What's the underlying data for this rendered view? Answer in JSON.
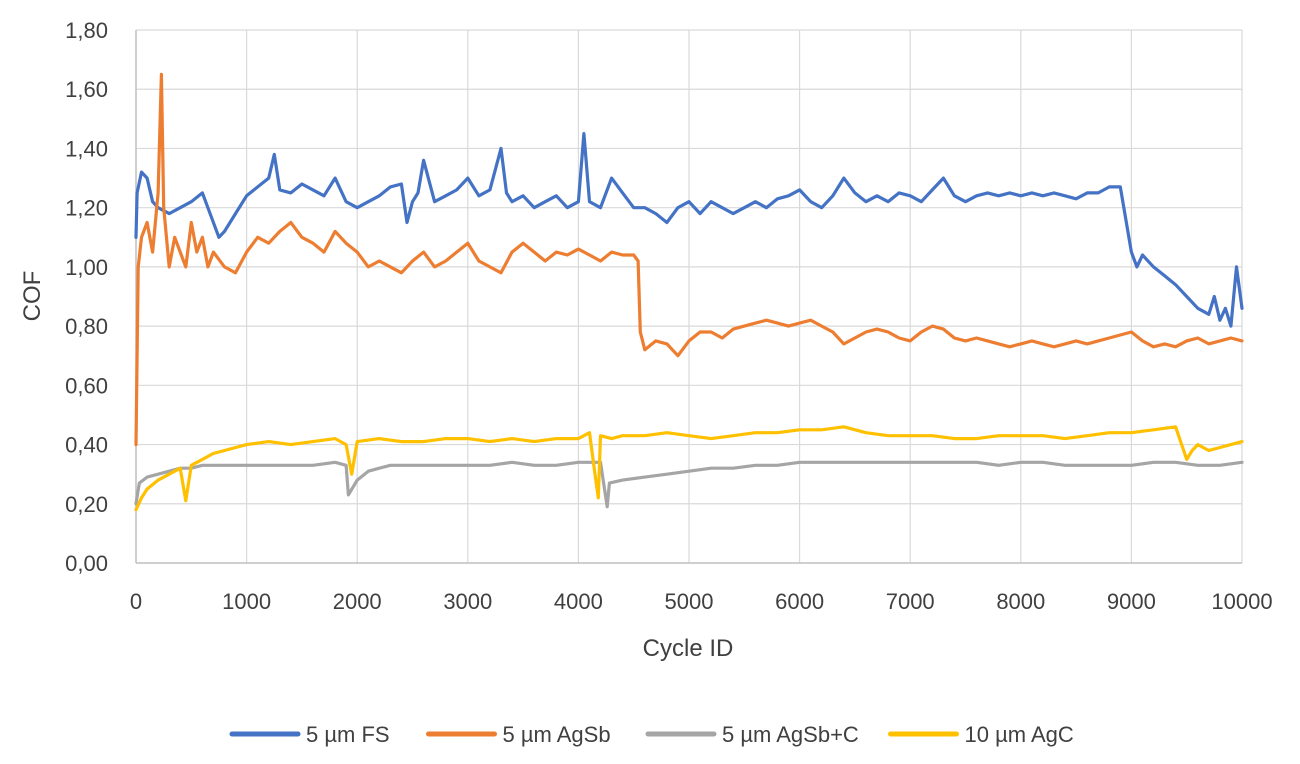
{
  "chart_data": {
    "type": "line",
    "title": "",
    "xlabel": "Cycle ID",
    "ylabel": "COF",
    "xlim": [
      0,
      10000
    ],
    "ylim": [
      0,
      1.8
    ],
    "grid": true,
    "legend_position": "bottom",
    "x_ticks": [
      0,
      1000,
      2000,
      3000,
      4000,
      5000,
      6000,
      7000,
      8000,
      9000,
      10000
    ],
    "x_tick_labels": [
      "0",
      "1000",
      "2000",
      "3000",
      "4000",
      "5000",
      "6000",
      "7000",
      "8000",
      "9000",
      "10000"
    ],
    "y_ticks": [
      0,
      0.2,
      0.4,
      0.6,
      0.8,
      1.0,
      1.2,
      1.4,
      1.6,
      1.8
    ],
    "y_tick_labels": [
      "0,00",
      "0,20",
      "0,40",
      "0,60",
      "0,80",
      "1,00",
      "1,20",
      "1,40",
      "1,60",
      "1,80"
    ],
    "series": [
      {
        "name": "5 µm FS",
        "color": "#4472C4",
        "x": [
          0,
          10,
          50,
          100,
          150,
          200,
          300,
          400,
          500,
          600,
          700,
          750,
          800,
          900,
          1000,
          1100,
          1200,
          1250,
          1300,
          1400,
          1500,
          1600,
          1700,
          1800,
          1900,
          2000,
          2100,
          2200,
          2300,
          2400,
          2450,
          2500,
          2550,
          2600,
          2700,
          2800,
          2900,
          3000,
          3100,
          3200,
          3300,
          3350,
          3400,
          3500,
          3600,
          3700,
          3800,
          3900,
          4000,
          4050,
          4100,
          4200,
          4300,
          4400,
          4500,
          4600,
          4700,
          4800,
          4900,
          5000,
          5100,
          5200,
          5300,
          5400,
          5500,
          5600,
          5700,
          5800,
          5900,
          6000,
          6100,
          6200,
          6300,
          6400,
          6500,
          6600,
          6700,
          6800,
          6900,
          7000,
          7100,
          7200,
          7300,
          7400,
          7500,
          7600,
          7700,
          7800,
          7900,
          8000,
          8100,
          8200,
          8300,
          8400,
          8500,
          8600,
          8700,
          8800,
          8900,
          9000,
          9050,
          9100,
          9200,
          9300,
          9400,
          9500,
          9600,
          9700,
          9750,
          9800,
          9850,
          9900,
          9950,
          10000
        ],
        "y": [
          1.1,
          1.25,
          1.32,
          1.3,
          1.22,
          1.2,
          1.18,
          1.2,
          1.22,
          1.25,
          1.15,
          1.1,
          1.12,
          1.18,
          1.24,
          1.27,
          1.3,
          1.38,
          1.26,
          1.25,
          1.28,
          1.26,
          1.24,
          1.3,
          1.22,
          1.2,
          1.22,
          1.24,
          1.27,
          1.28,
          1.15,
          1.22,
          1.25,
          1.36,
          1.22,
          1.24,
          1.26,
          1.3,
          1.24,
          1.26,
          1.4,
          1.25,
          1.22,
          1.24,
          1.2,
          1.22,
          1.24,
          1.2,
          1.22,
          1.45,
          1.22,
          1.2,
          1.3,
          1.25,
          1.2,
          1.2,
          1.18,
          1.15,
          1.2,
          1.22,
          1.18,
          1.22,
          1.2,
          1.18,
          1.2,
          1.22,
          1.2,
          1.23,
          1.24,
          1.26,
          1.22,
          1.2,
          1.24,
          1.3,
          1.25,
          1.22,
          1.24,
          1.22,
          1.25,
          1.24,
          1.22,
          1.26,
          1.3,
          1.24,
          1.22,
          1.24,
          1.25,
          1.24,
          1.25,
          1.24,
          1.25,
          1.24,
          1.25,
          1.24,
          1.23,
          1.25,
          1.25,
          1.27,
          1.27,
          1.05,
          1.0,
          1.04,
          1.0,
          0.97,
          0.94,
          0.9,
          0.86,
          0.84,
          0.9,
          0.82,
          0.86,
          0.8,
          1.0,
          0.86
        ]
      },
      {
        "name": "5 µm AgSb",
        "color": "#ED7D31",
        "x": [
          0,
          20,
          50,
          100,
          150,
          200,
          230,
          250,
          300,
          350,
          400,
          450,
          500,
          550,
          600,
          650,
          700,
          800,
          900,
          1000,
          1100,
          1200,
          1300,
          1400,
          1500,
          1600,
          1700,
          1800,
          1900,
          2000,
          2100,
          2200,
          2300,
          2400,
          2500,
          2600,
          2700,
          2800,
          2900,
          3000,
          3100,
          3200,
          3300,
          3400,
          3500,
          3600,
          3700,
          3800,
          3900,
          4000,
          4100,
          4200,
          4300,
          4400,
          4500,
          4540,
          4560,
          4600,
          4700,
          4800,
          4900,
          5000,
          5100,
          5200,
          5300,
          5400,
          5500,
          5600,
          5700,
          5800,
          5900,
          6000,
          6100,
          6200,
          6300,
          6400,
          6500,
          6600,
          6700,
          6800,
          6900,
          7000,
          7100,
          7200,
          7300,
          7400,
          7500,
          7600,
          7700,
          7800,
          7900,
          8000,
          8100,
          8200,
          8300,
          8400,
          8500,
          8600,
          8700,
          8800,
          8900,
          9000,
          9100,
          9200,
          9300,
          9400,
          9500,
          9600,
          9700,
          9800,
          9900,
          10000
        ],
        "y": [
          0.4,
          1.0,
          1.1,
          1.15,
          1.05,
          1.25,
          1.65,
          1.2,
          1.0,
          1.1,
          1.05,
          1.0,
          1.15,
          1.05,
          1.1,
          1.0,
          1.05,
          1.0,
          0.98,
          1.05,
          1.1,
          1.08,
          1.12,
          1.15,
          1.1,
          1.08,
          1.05,
          1.12,
          1.08,
          1.05,
          1.0,
          1.02,
          1.0,
          0.98,
          1.02,
          1.05,
          1.0,
          1.02,
          1.05,
          1.08,
          1.02,
          1.0,
          0.98,
          1.05,
          1.08,
          1.05,
          1.02,
          1.05,
          1.04,
          1.06,
          1.04,
          1.02,
          1.05,
          1.04,
          1.04,
          1.02,
          0.78,
          0.72,
          0.75,
          0.74,
          0.7,
          0.75,
          0.78,
          0.78,
          0.76,
          0.79,
          0.8,
          0.81,
          0.82,
          0.81,
          0.8,
          0.81,
          0.82,
          0.8,
          0.78,
          0.74,
          0.76,
          0.78,
          0.79,
          0.78,
          0.76,
          0.75,
          0.78,
          0.8,
          0.79,
          0.76,
          0.75,
          0.76,
          0.75,
          0.74,
          0.73,
          0.74,
          0.75,
          0.74,
          0.73,
          0.74,
          0.75,
          0.74,
          0.75,
          0.76,
          0.77,
          0.78,
          0.75,
          0.73,
          0.74,
          0.73,
          0.75,
          0.76,
          0.74,
          0.75,
          0.76,
          0.75
        ]
      },
      {
        "name": "5 µm AgSb+C",
        "color": "#A5A5A5",
        "x": [
          0,
          30,
          100,
          200,
          300,
          400,
          500,
          600,
          700,
          800,
          1000,
          1200,
          1400,
          1600,
          1800,
          1900,
          1920,
          2000,
          2100,
          2200,
          2300,
          2400,
          2600,
          2800,
          3000,
          3200,
          3400,
          3600,
          3800,
          4000,
          4100,
          4200,
          4260,
          4280,
          4400,
          4600,
          4800,
          5000,
          5200,
          5400,
          5600,
          5800,
          6000,
          6200,
          6400,
          6600,
          6800,
          7000,
          7200,
          7400,
          7600,
          7800,
          8000,
          8200,
          8400,
          8600,
          8800,
          9000,
          9200,
          9400,
          9600,
          9800,
          10000
        ],
        "y": [
          0.2,
          0.27,
          0.29,
          0.3,
          0.31,
          0.32,
          0.32,
          0.33,
          0.33,
          0.33,
          0.33,
          0.33,
          0.33,
          0.33,
          0.34,
          0.33,
          0.23,
          0.28,
          0.31,
          0.32,
          0.33,
          0.33,
          0.33,
          0.33,
          0.33,
          0.33,
          0.34,
          0.33,
          0.33,
          0.34,
          0.34,
          0.34,
          0.19,
          0.27,
          0.28,
          0.29,
          0.3,
          0.31,
          0.32,
          0.32,
          0.33,
          0.33,
          0.34,
          0.34,
          0.34,
          0.34,
          0.34,
          0.34,
          0.34,
          0.34,
          0.34,
          0.33,
          0.34,
          0.34,
          0.33,
          0.33,
          0.33,
          0.33,
          0.34,
          0.34,
          0.33,
          0.33,
          0.34
        ]
      },
      {
        "name": "10 µm AgC",
        "color": "#FFC000",
        "x": [
          0,
          50,
          100,
          200,
          300,
          400,
          450,
          500,
          600,
          700,
          800,
          1000,
          1200,
          1400,
          1600,
          1800,
          1900,
          1950,
          2000,
          2200,
          2400,
          2600,
          2800,
          3000,
          3200,
          3400,
          3600,
          3800,
          4000,
          4100,
          4150,
          4180,
          4200,
          4300,
          4400,
          4600,
          4800,
          5000,
          5200,
          5400,
          5600,
          5800,
          6000,
          6200,
          6400,
          6600,
          6800,
          7000,
          7200,
          7400,
          7600,
          7800,
          8000,
          8200,
          8400,
          8600,
          8800,
          9000,
          9200,
          9400,
          9500,
          9550,
          9600,
          9700,
          9800,
          9900,
          10000
        ],
        "y": [
          0.18,
          0.22,
          0.25,
          0.28,
          0.3,
          0.32,
          0.21,
          0.33,
          0.35,
          0.37,
          0.38,
          0.4,
          0.41,
          0.4,
          0.41,
          0.42,
          0.4,
          0.3,
          0.41,
          0.42,
          0.41,
          0.41,
          0.42,
          0.42,
          0.41,
          0.42,
          0.41,
          0.42,
          0.42,
          0.44,
          0.3,
          0.22,
          0.43,
          0.42,
          0.43,
          0.43,
          0.44,
          0.43,
          0.42,
          0.43,
          0.44,
          0.44,
          0.45,
          0.45,
          0.46,
          0.44,
          0.43,
          0.43,
          0.43,
          0.42,
          0.42,
          0.43,
          0.43,
          0.43,
          0.42,
          0.43,
          0.44,
          0.44,
          0.45,
          0.46,
          0.35,
          0.38,
          0.4,
          0.38,
          0.39,
          0.4,
          0.41
        ]
      }
    ]
  }
}
